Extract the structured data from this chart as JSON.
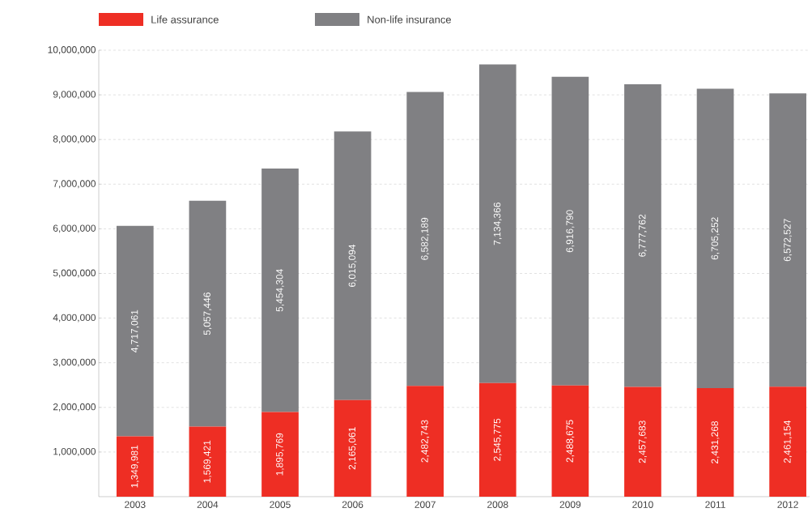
{
  "chart_data": {
    "type": "bar",
    "stacked": true,
    "categories": [
      "2003",
      "2004",
      "2005",
      "2006",
      "2007",
      "2008",
      "2009",
      "2010",
      "2011",
      "2012"
    ],
    "series": [
      {
        "name": "Life assurance",
        "color": "#ee2e24",
        "values": [
          1349981,
          1569421,
          1895769,
          2165061,
          2482743,
          2545775,
          2488675,
          2457683,
          2431268,
          2461154
        ],
        "value_labels": [
          "1,349,981",
          "1,569,421",
          "1,895,769",
          "2,165,061",
          "2,482,743",
          "2,545,775",
          "2,488,675",
          "2,457,683",
          "2,431,268",
          "2,461,154"
        ]
      },
      {
        "name": "Non-life insurance",
        "color": "#808083",
        "values": [
          4717061,
          5057446,
          5454304,
          6015094,
          6582189,
          7134366,
          6916790,
          6777762,
          6705252,
          6572527
        ],
        "value_labels": [
          "4,717,061",
          "5,057,446",
          "5,454,304",
          "6,015,094",
          "6,582,189",
          "7,134,366",
          "6,916,790",
          "6,777,762",
          "6,705,252",
          "6,572,527"
        ]
      }
    ],
    "ylim": [
      0,
      10000000
    ],
    "yticks": [
      {
        "value": 1000000,
        "label": "1,000,000"
      },
      {
        "value": 2000000,
        "label": "2,000,000"
      },
      {
        "value": 3000000,
        "label": "3,000,000"
      },
      {
        "value": 4000000,
        "label": "4,000,000"
      },
      {
        "value": 5000000,
        "label": "5,000,000"
      },
      {
        "value": 6000000,
        "label": "6,000,000"
      },
      {
        "value": 7000000,
        "label": "7,000,000"
      },
      {
        "value": 8000000,
        "label": "8,000,000"
      },
      {
        "value": 9000000,
        "label": "9,000,000"
      },
      {
        "value": 10000000,
        "label": "10,000,000"
      }
    ],
    "grid": "y",
    "legend": "top left"
  }
}
